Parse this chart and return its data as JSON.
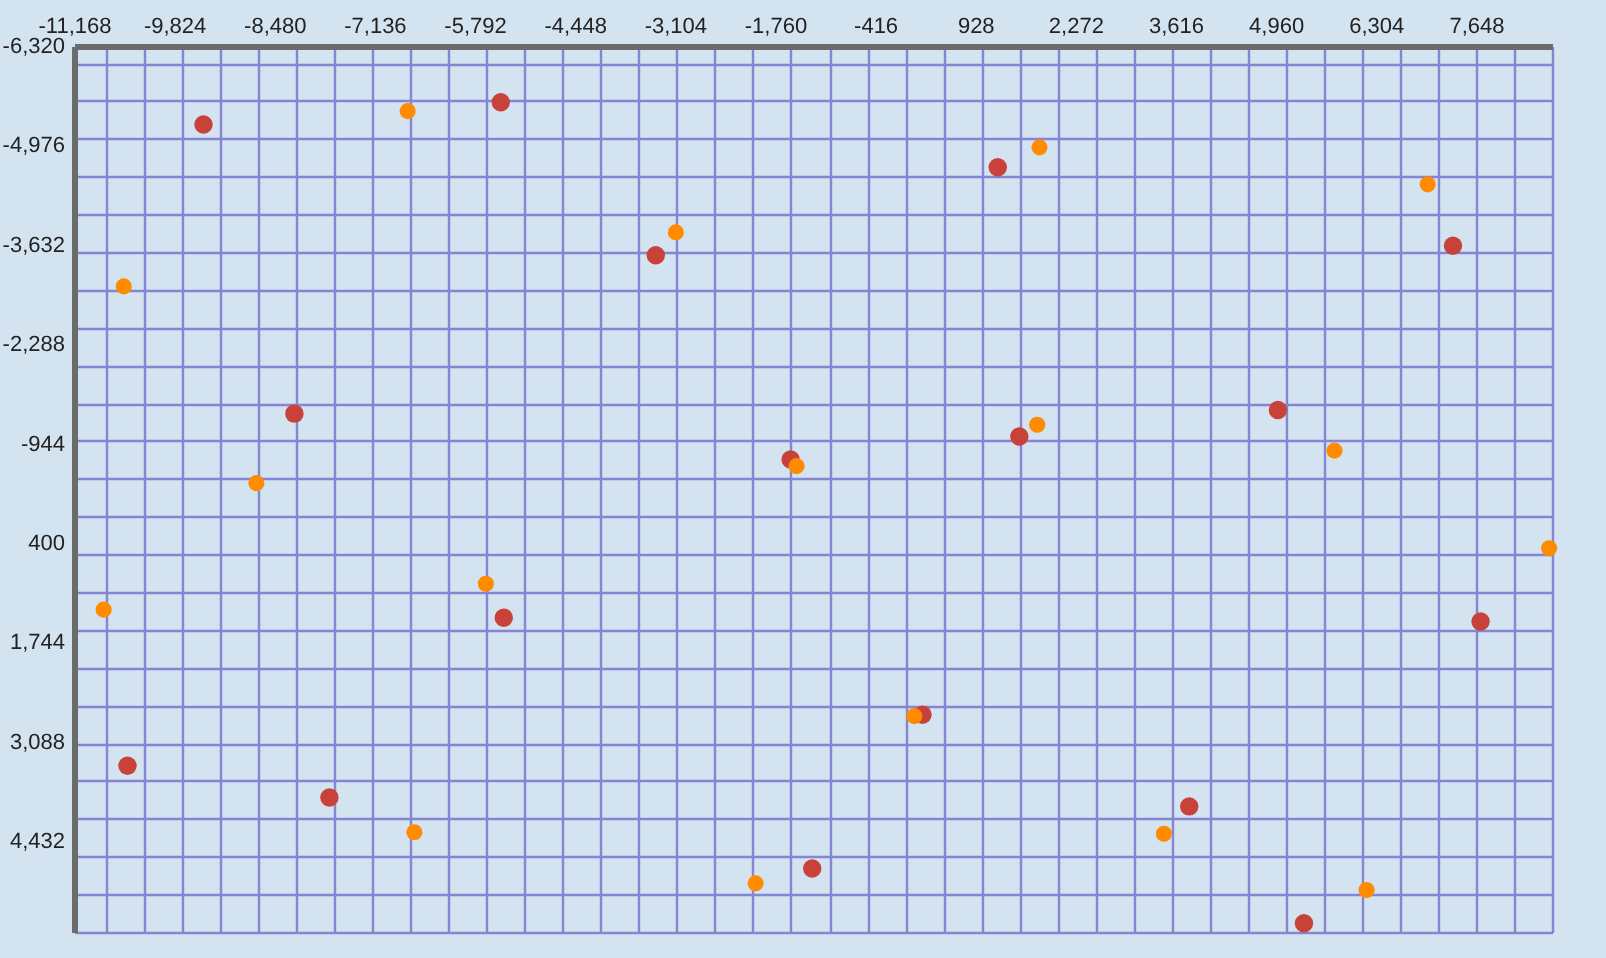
{
  "chart_data": {
    "type": "scatter",
    "grid": true,
    "marker": "circle",
    "xlim": [
      -11168,
      8669
    ],
    "ylim": [
      5658,
      -6320
    ],
    "xticks": [
      {
        "value": -11168,
        "label": "-11,168"
      },
      {
        "value": -10738,
        "label": null
      },
      {
        "value": -10227,
        "label": null
      },
      {
        "value": -9824,
        "label": "-9,824"
      },
      {
        "value": -9716,
        "label": null
      },
      {
        "value": -9206,
        "label": null
      },
      {
        "value": -8695,
        "label": null
      },
      {
        "value": -8480,
        "label": "-8,480"
      },
      {
        "value": -8184,
        "label": null
      },
      {
        "value": -7674,
        "label": null
      },
      {
        "value": -7163,
        "label": null
      },
      {
        "value": -7136,
        "label": "-7,136"
      },
      {
        "value": -6652,
        "label": null
      },
      {
        "value": -6142,
        "label": null
      },
      {
        "value": -5792,
        "label": "-5,792"
      },
      {
        "value": -5631,
        "label": null
      },
      {
        "value": -5120,
        "label": null
      },
      {
        "value": -4609,
        "label": null
      },
      {
        "value": -4448,
        "label": "-4,448"
      },
      {
        "value": -4099,
        "label": null
      },
      {
        "value": -3588,
        "label": null
      },
      {
        "value": -3104,
        "label": "-3,104"
      },
      {
        "value": -3077,
        "label": null
      },
      {
        "value": -2567,
        "label": null
      },
      {
        "value": -2056,
        "label": null
      },
      {
        "value": -1760,
        "label": "-1,760"
      },
      {
        "value": -1545,
        "label": null
      },
      {
        "value": -1034,
        "label": null
      },
      {
        "value": -524,
        "label": null
      },
      -416,
      {
        "value": -13,
        "label": null
      },
      {
        "value": 498,
        "label": null
      },
      928,
      {
        "value": 1009,
        "label": null
      },
      {
        "value": 1519,
        "label": null
      },
      {
        "value": 2030,
        "label": null
      },
      {
        "value": 2272,
        "label": "2,272"
      },
      {
        "value": 2541,
        "label": null
      },
      {
        "value": 3051,
        "label": null
      },
      {
        "value": 3562,
        "label": null
      },
      {
        "value": 3616,
        "label": "3,616"
      },
      {
        "value": 4073,
        "label": null
      },
      {
        "value": 4584,
        "label": null
      },
      {
        "value": 4960,
        "label": "4,960"
      },
      {
        "value": 5094,
        "label": null
      },
      {
        "value": 5605,
        "label": null
      },
      {
        "value": 6116,
        "label": null
      },
      {
        "value": 6304,
        "label": "6,304"
      },
      {
        "value": 6626,
        "label": null
      },
      {
        "value": 7137,
        "label": null
      },
      {
        "value": 7648,
        "label": "7,648"
      },
      {
        "value": 7660,
        "label": null
      },
      {
        "value": 8159,
        "label": null
      },
      {
        "value": 8669,
        "label": null
      }
    ],
    "yticks": [
      {
        "value": -6320,
        "label": "-6,320"
      },
      {
        "value": -6089,
        "label": null
      },
      {
        "value": -5578,
        "label": null
      },
      {
        "value": -5068,
        "label": null
      },
      {
        "value": -4976,
        "label": "-4,976"
      },
      {
        "value": -4557,
        "label": null
      },
      {
        "value": -4046,
        "label": null
      },
      {
        "value": -3632,
        "label": "-3,632"
      },
      {
        "value": -3535,
        "label": null
      },
      {
        "value": -3025,
        "label": null
      },
      {
        "value": -2514,
        "label": null
      },
      {
        "value": -2288,
        "label": "-2,288"
      },
      {
        "value": -2003,
        "label": null
      },
      {
        "value": -1492,
        "label": null
      },
      {
        "value": -982,
        "label": null
      },
      -944,
      {
        "value": -471,
        "label": null
      },
      {
        "value": 40,
        "label": null
      },
      400,
      {
        "value": 550,
        "label": null
      },
      {
        "value": 1061,
        "label": null
      },
      {
        "value": 1572,
        "label": null
      },
      {
        "value": 1744,
        "label": "1,744"
      },
      {
        "value": 2083,
        "label": null
      },
      {
        "value": 2593,
        "label": null
      },
      {
        "value": 3088,
        "label": "3,088"
      },
      {
        "value": 3104,
        "label": null
      },
      {
        "value": 3615,
        "label": null
      },
      {
        "value": 4125,
        "label": null
      },
      {
        "value": 4432,
        "label": "4,432"
      },
      {
        "value": 4636,
        "label": null
      },
      {
        "value": 5147,
        "label": null
      },
      {
        "value": 5658,
        "label": null
      }
    ],
    "series": [
      {
        "color": "#c8423a",
        "x": [
          -9430,
          -5440,
          -8210,
          -3360,
          -1550,
          1230,
          7340,
          1520,
          4990,
          -5400,
          -10450,
          -7740,
          -1260,
          220,
          3800,
          7710,
          5340
        ],
        "values": [
          -5260,
          -5560,
          -1350,
          -3490,
          -730,
          -4680,
          -3620,
          -1040,
          -1400,
          1410,
          3410,
          3840,
          4800,
          2720,
          3960,
          1460,
          5540
        ]
      },
      {
        "color": "#ff8c00",
        "x": [
          -10500,
          -6690,
          -3090,
          1790,
          7000,
          1760,
          5750,
          -1470,
          -8720,
          -10770,
          -5640,
          -6600,
          -2020,
          110,
          3460,
          6180,
          8630
        ],
        "values": [
          -3070,
          -5440,
          -3800,
          -4950,
          -4450,
          -1200,
          -850,
          -640,
          -410,
          1300,
          950,
          4310,
          5000,
          2740,
          4330,
          5090,
          470
        ]
      }
    ]
  }
}
